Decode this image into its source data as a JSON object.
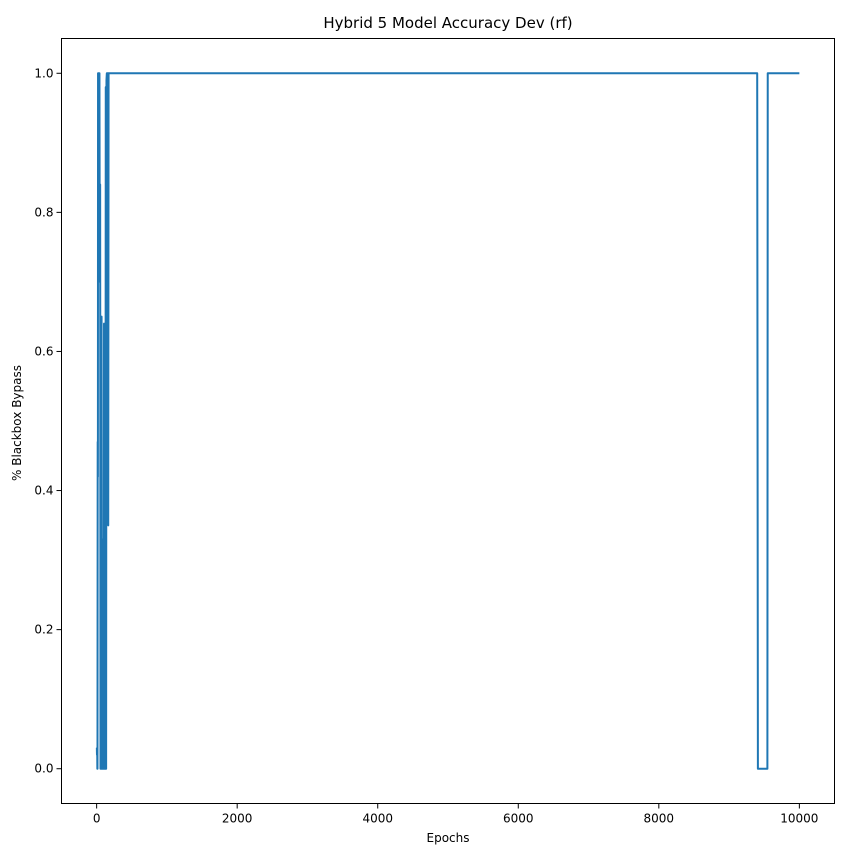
{
  "chart_data": {
    "type": "line",
    "title": "Hybrid 5 Model Accuracy Dev (rf)",
    "xlabel": "Epochs",
    "ylabel": "% Blackbox Bypass",
    "xlim": [
      -500,
      10500
    ],
    "ylim": [
      -0.05,
      1.05
    ],
    "xticks": [
      0,
      2000,
      4000,
      6000,
      8000,
      10000
    ],
    "xtick_labels": [
      "0",
      "2000",
      "4000",
      "6000",
      "8000",
      "10000"
    ],
    "yticks": [
      0.0,
      0.2,
      0.4,
      0.6,
      0.8,
      1.0
    ],
    "ytick_labels": [
      "0.0",
      "0.2",
      "0.4",
      "0.6",
      "0.8",
      "1.0"
    ],
    "grid": false,
    "series": [
      {
        "color": "#1f77b4",
        "x": [
          0,
          3,
          5,
          8,
          10,
          12,
          15,
          18,
          20,
          25,
          30,
          35,
          40,
          45,
          50,
          55,
          60,
          65,
          70,
          75,
          80,
          85,
          90,
          95,
          100,
          105,
          110,
          115,
          120,
          125,
          130,
          135,
          140,
          145,
          150,
          155,
          160,
          165,
          170,
          175,
          180,
          185,
          190,
          195,
          200,
          205,
          210,
          220,
          230,
          300,
          1000,
          2000,
          4000,
          6000,
          8000,
          9300,
          9400,
          9410,
          9450,
          9500,
          9540,
          9545,
          9550,
          9560,
          9600,
          9800,
          10000
        ],
        "y": [
          0.03,
          0.03,
          0.02,
          0.03,
          0.0,
          0.0,
          0.47,
          0.42,
          1.0,
          1.0,
          0.85,
          1.0,
          1.0,
          0.7,
          0.84,
          0.0,
          0.45,
          0.0,
          0.65,
          0.0,
          0.33,
          0.0,
          0.23,
          0.0,
          0.0,
          0.64,
          0.0,
          0.0,
          0.64,
          0.0,
          0.98,
          0.0,
          0.99,
          1.0,
          1.0,
          0.37,
          1.0,
          0.35,
          1.0,
          1.0,
          1.0,
          1.0,
          1.0,
          1.0,
          1.0,
          1.0,
          1.0,
          1.0,
          1.0,
          1.0,
          1.0,
          1.0,
          1.0,
          1.0,
          1.0,
          1.0,
          1.0,
          0.0,
          0.0,
          0.0,
          0.0,
          0.0,
          1.0,
          1.0,
          1.0,
          1.0,
          1.0
        ]
      }
    ]
  }
}
